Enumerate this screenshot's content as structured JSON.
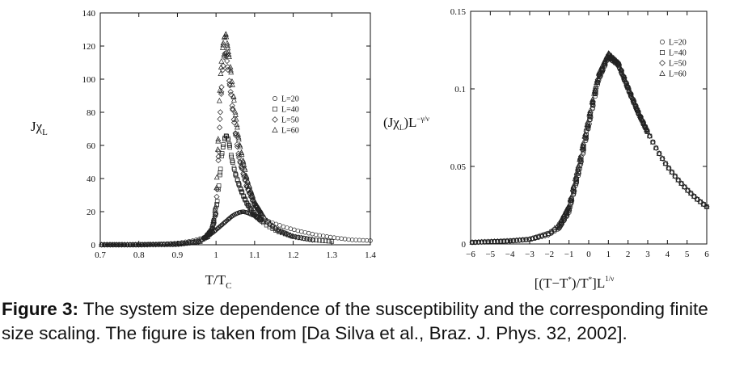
{
  "caption": {
    "label": "Figure 3:",
    "text": " The system size dependence of the susceptibility and the corresponding finite size scaling. The figure is taken from [Da Silva et al., Braz. J. Phys. 32, 2002]."
  },
  "chart_data": [
    {
      "type": "scatter",
      "xlabel_main": "T/T",
      "xlabel_sub": "C",
      "ylabel_main": "Jχ",
      "ylabel_sub": "L",
      "xlim": [
        0.7,
        1.4
      ],
      "ylim": [
        0,
        140
      ],
      "xticks": [
        0.7,
        0.8,
        0.9,
        1,
        1.1,
        1.2,
        1.3,
        1.4
      ],
      "yticks": [
        0,
        20,
        40,
        60,
        80,
        100,
        120,
        140
      ],
      "legend_position": "center-right",
      "series": [
        {
          "name": "L=20",
          "marker": "circle",
          "x": [
            0.7,
            0.75,
            0.8,
            0.85,
            0.9,
            0.94,
            0.97,
            0.99,
            1.0,
            1.01,
            1.02,
            1.03,
            1.04,
            1.05,
            1.06,
            1.07,
            1.08,
            1.09,
            1.1,
            1.12,
            1.15,
            1.18,
            1.22,
            1.26,
            1.3,
            1.35,
            1.4
          ],
          "y": [
            0,
            0,
            0.2,
            0.4,
            1,
            2.5,
            4.5,
            7,
            9,
            11,
            13,
            15,
            17,
            18.5,
            19.5,
            20,
            19.5,
            18.5,
            17.5,
            15.5,
            13,
            10.5,
            8,
            6,
            4.5,
            3,
            2.5
          ]
        },
        {
          "name": "L=40",
          "marker": "square",
          "x": [
            0.7,
            0.8,
            0.9,
            0.95,
            0.98,
            0.99,
            1.0,
            1.005,
            1.01,
            1.015,
            1.02,
            1.025,
            1.03,
            1.035,
            1.04,
            1.05,
            1.06,
            1.07,
            1.08,
            1.1,
            1.13,
            1.16,
            1.2,
            1.25,
            1.3
          ],
          "y": [
            0,
            0,
            0.5,
            2,
            5,
            10,
            20,
            30,
            42,
            54,
            62,
            66,
            65,
            60,
            53,
            43,
            36,
            30,
            25,
            18,
            12,
            8,
            5,
            3,
            2
          ]
        },
        {
          "name": "L=50",
          "marker": "diamond",
          "x": [
            0.7,
            0.8,
            0.9,
            0.96,
            0.99,
            1.0,
            1.005,
            1.01,
            1.015,
            1.02,
            1.025,
            1.03,
            1.04,
            1.05,
            1.06,
            1.08,
            1.1,
            1.13,
            1.16,
            1.2,
            1.25
          ],
          "y": [
            0,
            0,
            0.3,
            2,
            8,
            20,
            45,
            75,
            98,
            112,
            118,
            108,
            88,
            68,
            52,
            35,
            24,
            14,
            9,
            5,
            3
          ]
        },
        {
          "name": "L=60",
          "marker": "triangle",
          "x": [
            0.7,
            0.8,
            0.9,
            0.96,
            0.99,
            1.0,
            1.005,
            1.01,
            1.015,
            1.02,
            1.025,
            1.03,
            1.035,
            1.04,
            1.05,
            1.06,
            1.08,
            1.1,
            1.13,
            1.16,
            1.2
          ],
          "y": [
            0,
            0,
            0.3,
            2,
            10,
            25,
            60,
            95,
            115,
            124,
            128,
            120,
            112,
            102,
            80,
            62,
            40,
            26,
            15,
            9,
            5
          ]
        }
      ]
    },
    {
      "type": "scatter",
      "xlabel": "[(T−T*)/T*]L^{1/ν}",
      "ylabel": "(Jχ_L)L^{−γ/ν}",
      "xlim": [
        -6,
        6
      ],
      "ylim": [
        0,
        0.15
      ],
      "xticks": [
        -6,
        -5,
        -4,
        -3,
        -2,
        -1,
        0,
        1,
        2,
        3,
        4,
        5,
        6
      ],
      "yticks": [
        0,
        0.05,
        0.1,
        0.15
      ],
      "legend_position": "top-right",
      "series": [
        {
          "name": "L=20",
          "marker": "circle",
          "x": [
            -6,
            -5,
            -4,
            -3,
            -2,
            -1.5,
            -1,
            -0.5,
            0,
            0.5,
            1,
            1.5,
            2,
            2.5,
            3,
            3.5,
            4,
            4.5,
            5,
            5.5,
            6
          ],
          "y": [
            0.001,
            0.0015,
            0.002,
            0.003,
            0.006,
            0.01,
            0.02,
            0.045,
            0.075,
            0.105,
            0.12,
            0.115,
            0.1,
            0.085,
            0.072,
            0.06,
            0.05,
            0.042,
            0.035,
            0.029,
            0.024
          ]
        },
        {
          "name": "L=40",
          "marker": "square",
          "x": [
            -6,
            -5,
            -4,
            -3,
            -2,
            -1.5,
            -1,
            -0.5,
            0,
            0.5,
            1,
            1.5,
            2,
            2.5,
            3,
            3.5,
            4,
            4.5,
            5,
            5.5,
            6
          ],
          "y": [
            0.001,
            0.0015,
            0.002,
            0.003,
            0.007,
            0.011,
            0.022,
            0.047,
            0.078,
            0.107,
            0.121,
            0.116,
            0.1,
            0.085,
            0.072,
            0.06,
            0.05,
            0.042,
            0.035,
            0.029,
            0.024
          ]
        },
        {
          "name": "L=50",
          "marker": "diamond",
          "x": [
            -6,
            -5,
            -4,
            -3,
            -2,
            -1.5,
            -1,
            -0.5,
            0,
            0.5,
            1,
            1.5,
            2,
            2.5,
            3,
            3.5,
            4,
            4.5,
            5,
            5.5,
            6
          ],
          "y": [
            0.001,
            0.0015,
            0.002,
            0.003,
            0.006,
            0.012,
            0.024,
            0.05,
            0.08,
            0.108,
            0.122,
            0.117,
            0.101,
            0.086,
            0.072,
            0.06,
            0.05,
            0.042,
            0.035,
            0.029,
            0.024
          ]
        },
        {
          "name": "L=60",
          "marker": "triangle",
          "x": [
            -6,
            -5,
            -4,
            -3,
            -2,
            -1.5,
            -1,
            -0.5,
            0,
            0.5,
            1,
            1.5,
            2,
            2.5,
            3,
            3.5,
            4,
            4.5,
            5,
            5.5,
            6
          ],
          "y": [
            0.001,
            0.0015,
            0.002,
            0.003,
            0.007,
            0.013,
            0.025,
            0.052,
            0.082,
            0.11,
            0.123,
            0.117,
            0.101,
            0.086,
            0.072,
            0.06,
            0.05,
            0.042,
            0.035,
            0.029,
            0.024
          ]
        }
      ]
    }
  ]
}
